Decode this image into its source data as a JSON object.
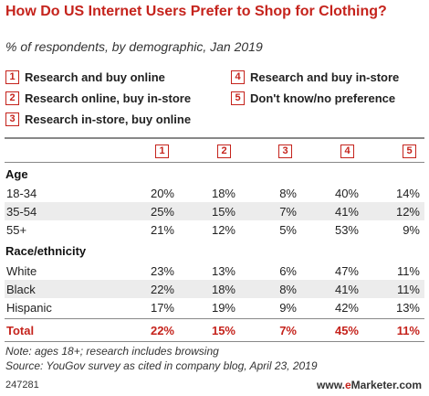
{
  "title": "How Do US Internet Users Prefer to Shop for Clothing?",
  "subtitle": "% of respondents, by demographic, Jan 2019",
  "legend": [
    {
      "num": "1",
      "label": "Research and buy online"
    },
    {
      "num": "2",
      "label": "Research online, buy in-store"
    },
    {
      "num": "3",
      "label": "Research in-store, buy online"
    },
    {
      "num": "4",
      "label": "Research and buy in-store"
    },
    {
      "num": "5",
      "label": "Don't know/no preference"
    }
  ],
  "column_headers": [
    "1",
    "2",
    "3",
    "4",
    "5"
  ],
  "chart_data": {
    "type": "table",
    "title": "How Do US Internet Users Prefer to Shop for Clothing?",
    "subtitle": "% of respondents, by demographic, Jan 2019",
    "columns": [
      "Research and buy online",
      "Research online, buy in-store",
      "Research in-store, buy online",
      "Research and buy in-store",
      "Don't know/no preference"
    ],
    "sections": [
      {
        "name": "Age",
        "rows": [
          {
            "label": "18-34",
            "values": [
              "20%",
              "18%",
              "8%",
              "40%",
              "14%"
            ]
          },
          {
            "label": "35-54",
            "values": [
              "25%",
              "15%",
              "7%",
              "41%",
              "12%"
            ]
          },
          {
            "label": "55+",
            "values": [
              "21%",
              "12%",
              "5%",
              "53%",
              "9%"
            ]
          }
        ]
      },
      {
        "name": "Race/ethnicity",
        "rows": [
          {
            "label": "White",
            "values": [
              "23%",
              "13%",
              "6%",
              "47%",
              "11%"
            ]
          },
          {
            "label": "Black",
            "values": [
              "22%",
              "18%",
              "8%",
              "41%",
              "11%"
            ]
          },
          {
            "label": "Hispanic",
            "values": [
              "17%",
              "19%",
              "9%",
              "42%",
              "13%"
            ]
          }
        ]
      }
    ],
    "total": {
      "label": "Total",
      "values": [
        "22%",
        "15%",
        "7%",
        "45%",
        "11%"
      ]
    }
  },
  "note": "Note: ages 18+; research includes browsing",
  "source": "Source: YouGov survey as cited in company blog, April 23, 2019",
  "footer": {
    "id": "247281",
    "brand_prefix": "www.",
    "brand_e": "e",
    "brand_rest": "Marketer.com"
  }
}
